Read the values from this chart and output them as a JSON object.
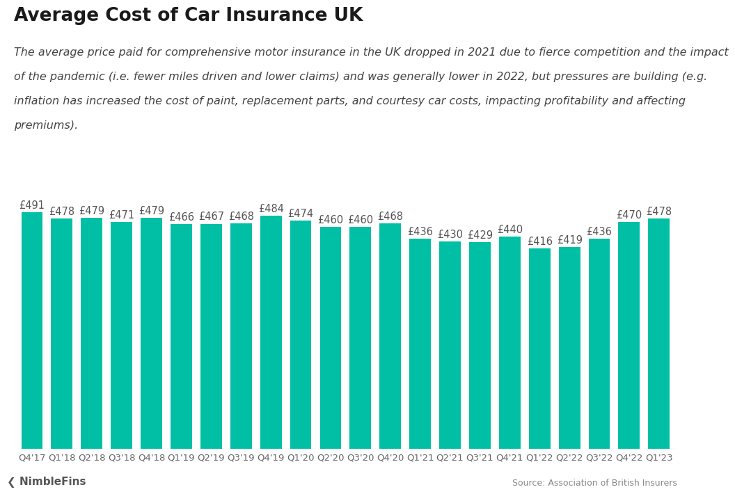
{
  "title": "Average Cost of Car Insurance UK",
  "subtitle_lines": [
    "The average price paid for comprehensive motor insurance in the UK dropped in 2021 due to fierce competition and the impact",
    "of the pandemic (i.e. fewer miles driven and lower claims) and was generally lower in 2022, but pressures are building (e.g.",
    "inflation has increased the cost of paint, replacement parts, and courtesy car costs, impacting profitability and affecting",
    "premiums)."
  ],
  "categories": [
    "Q4'17",
    "Q1'18",
    "Q2'18",
    "Q3'18",
    "Q4'18",
    "Q1'19",
    "Q2'19",
    "Q3'19",
    "Q4'19",
    "Q1'20",
    "Q2'20",
    "Q3'20",
    "Q4'20",
    "Q1'21",
    "Q2'21",
    "Q3'21",
    "Q4'21",
    "Q1'22",
    "Q2'22",
    "Q3'22",
    "Q4'22",
    "Q1'23"
  ],
  "values": [
    491,
    478,
    479,
    471,
    479,
    466,
    467,
    468,
    484,
    474,
    460,
    460,
    468,
    436,
    430,
    429,
    440,
    416,
    419,
    436,
    470,
    478
  ],
  "bar_color": "#00BFA5",
  "label_color": "#555555",
  "background_color": "#ffffff",
  "source_text": "Source: Association of British Insurers",
  "title_fontsize": 19,
  "subtitle_fontsize": 11.5,
  "label_fontsize": 10.5,
  "tick_fontsize": 9.5,
  "ylim": [
    0,
    545
  ]
}
